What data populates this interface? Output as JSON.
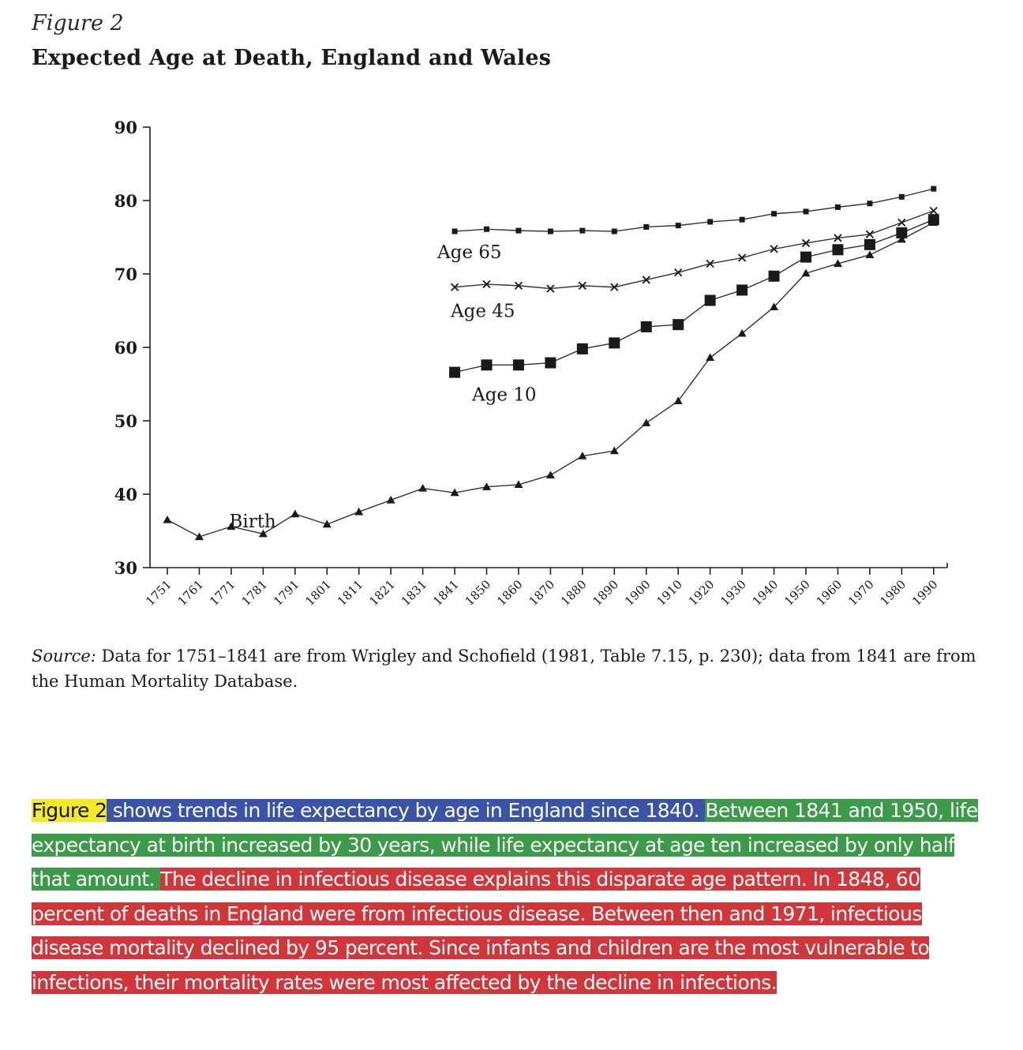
{
  "figure": {
    "label": "Figure 2",
    "title": "Expected Age at Death, England and Wales"
  },
  "chart_data": {
    "type": "line",
    "title": "Expected Age at Death, England and Wales",
    "xlabel": "",
    "ylabel": "",
    "x_ticks": [
      "1751",
      "1761",
      "1771",
      "1781",
      "1791",
      "1801",
      "1811",
      "1821",
      "1831",
      "1841",
      "1850",
      "1860",
      "1870",
      "1880",
      "1890",
      "1900",
      "1910",
      "1920",
      "1930",
      "1940",
      "1950",
      "1960",
      "1970",
      "1980",
      "1990"
    ],
    "y_ticks": [
      "30",
      "40",
      "50",
      "60",
      "70",
      "80",
      "90"
    ],
    "ylim": [
      30,
      90
    ],
    "grid": false,
    "legend": "none (series labeled directly on the lines)",
    "series": [
      {
        "name": "Birth",
        "marker": "triangle",
        "start_index": 0,
        "values": [
          36.5,
          34.2,
          35.6,
          34.6,
          37.3,
          35.9,
          37.6,
          39.2,
          40.8,
          40.2,
          41.0,
          41.3,
          42.6,
          45.2,
          45.9,
          49.7,
          52.7,
          58.6,
          61.9,
          65.5,
          70.1,
          71.4,
          72.6,
          74.7,
          77.0
        ]
      },
      {
        "name": "Age 10",
        "marker": "large-square",
        "start_index": 9,
        "values": [
          56.6,
          57.6,
          57.6,
          57.9,
          59.8,
          60.6,
          62.8,
          63.1,
          66.4,
          67.8,
          69.7,
          72.3,
          73.3,
          74.0,
          75.6,
          77.4
        ]
      },
      {
        "name": "Age 45",
        "marker": "x",
        "start_index": 9,
        "values": [
          68.2,
          68.6,
          68.4,
          68.0,
          68.4,
          68.2,
          69.2,
          70.2,
          71.4,
          72.2,
          73.4,
          74.2,
          74.9,
          75.4,
          77.0,
          78.6
        ]
      },
      {
        "name": "Age 65",
        "marker": "small-square",
        "start_index": 9,
        "values": [
          75.8,
          76.1,
          75.9,
          75.8,
          75.9,
          75.8,
          76.4,
          76.6,
          77.1,
          77.4,
          78.2,
          78.5,
          79.1,
          79.6,
          80.5,
          81.6
        ]
      }
    ]
  },
  "source": {
    "label": "Source:",
    "text": " Data for 1751–1841 are from Wrigley and Schofield (1981, Table 7.15, p. 230); data from 1841 are from the Human Mortality Database."
  },
  "paragraph": {
    "seg_yellow": "Figure 2",
    "seg_blue": " shows trends in life expectancy by age in England since 1840. ",
    "seg_green": " Between 1841 and 1950, life expectancy at birth increased by 30 years, while life expectancy at age ten increased by only half that amount. ",
    "seg_red": " The decline in infectious disease explains this disparate age pattern. In 1848, 60 percent of deaths in England were from infectious disease. Between then and 1971, infectious disease mortality declined by 95 percent. Since infants and children are the most vulnerable to infections, their mortality rates were most affected by the decline in infections.",
    "colors": {
      "yellow": "#f5ea24",
      "blue": "#3953a8",
      "green": "#3b9b49",
      "red": "#d2363a"
    }
  }
}
